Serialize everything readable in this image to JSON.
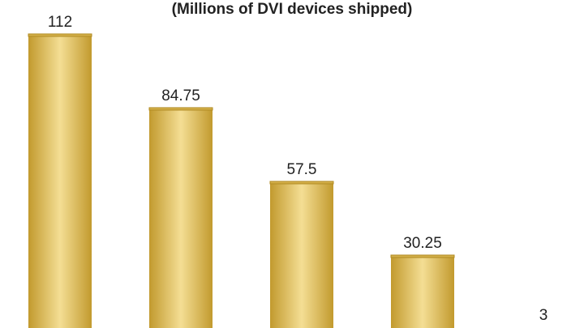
{
  "chart_data": {
    "type": "bar",
    "subtitle": "(Millions of DVI devices shipped)",
    "values": [
      112,
      84.75,
      57.5,
      30.25,
      3
    ],
    "color": "#d4b04a"
  }
}
